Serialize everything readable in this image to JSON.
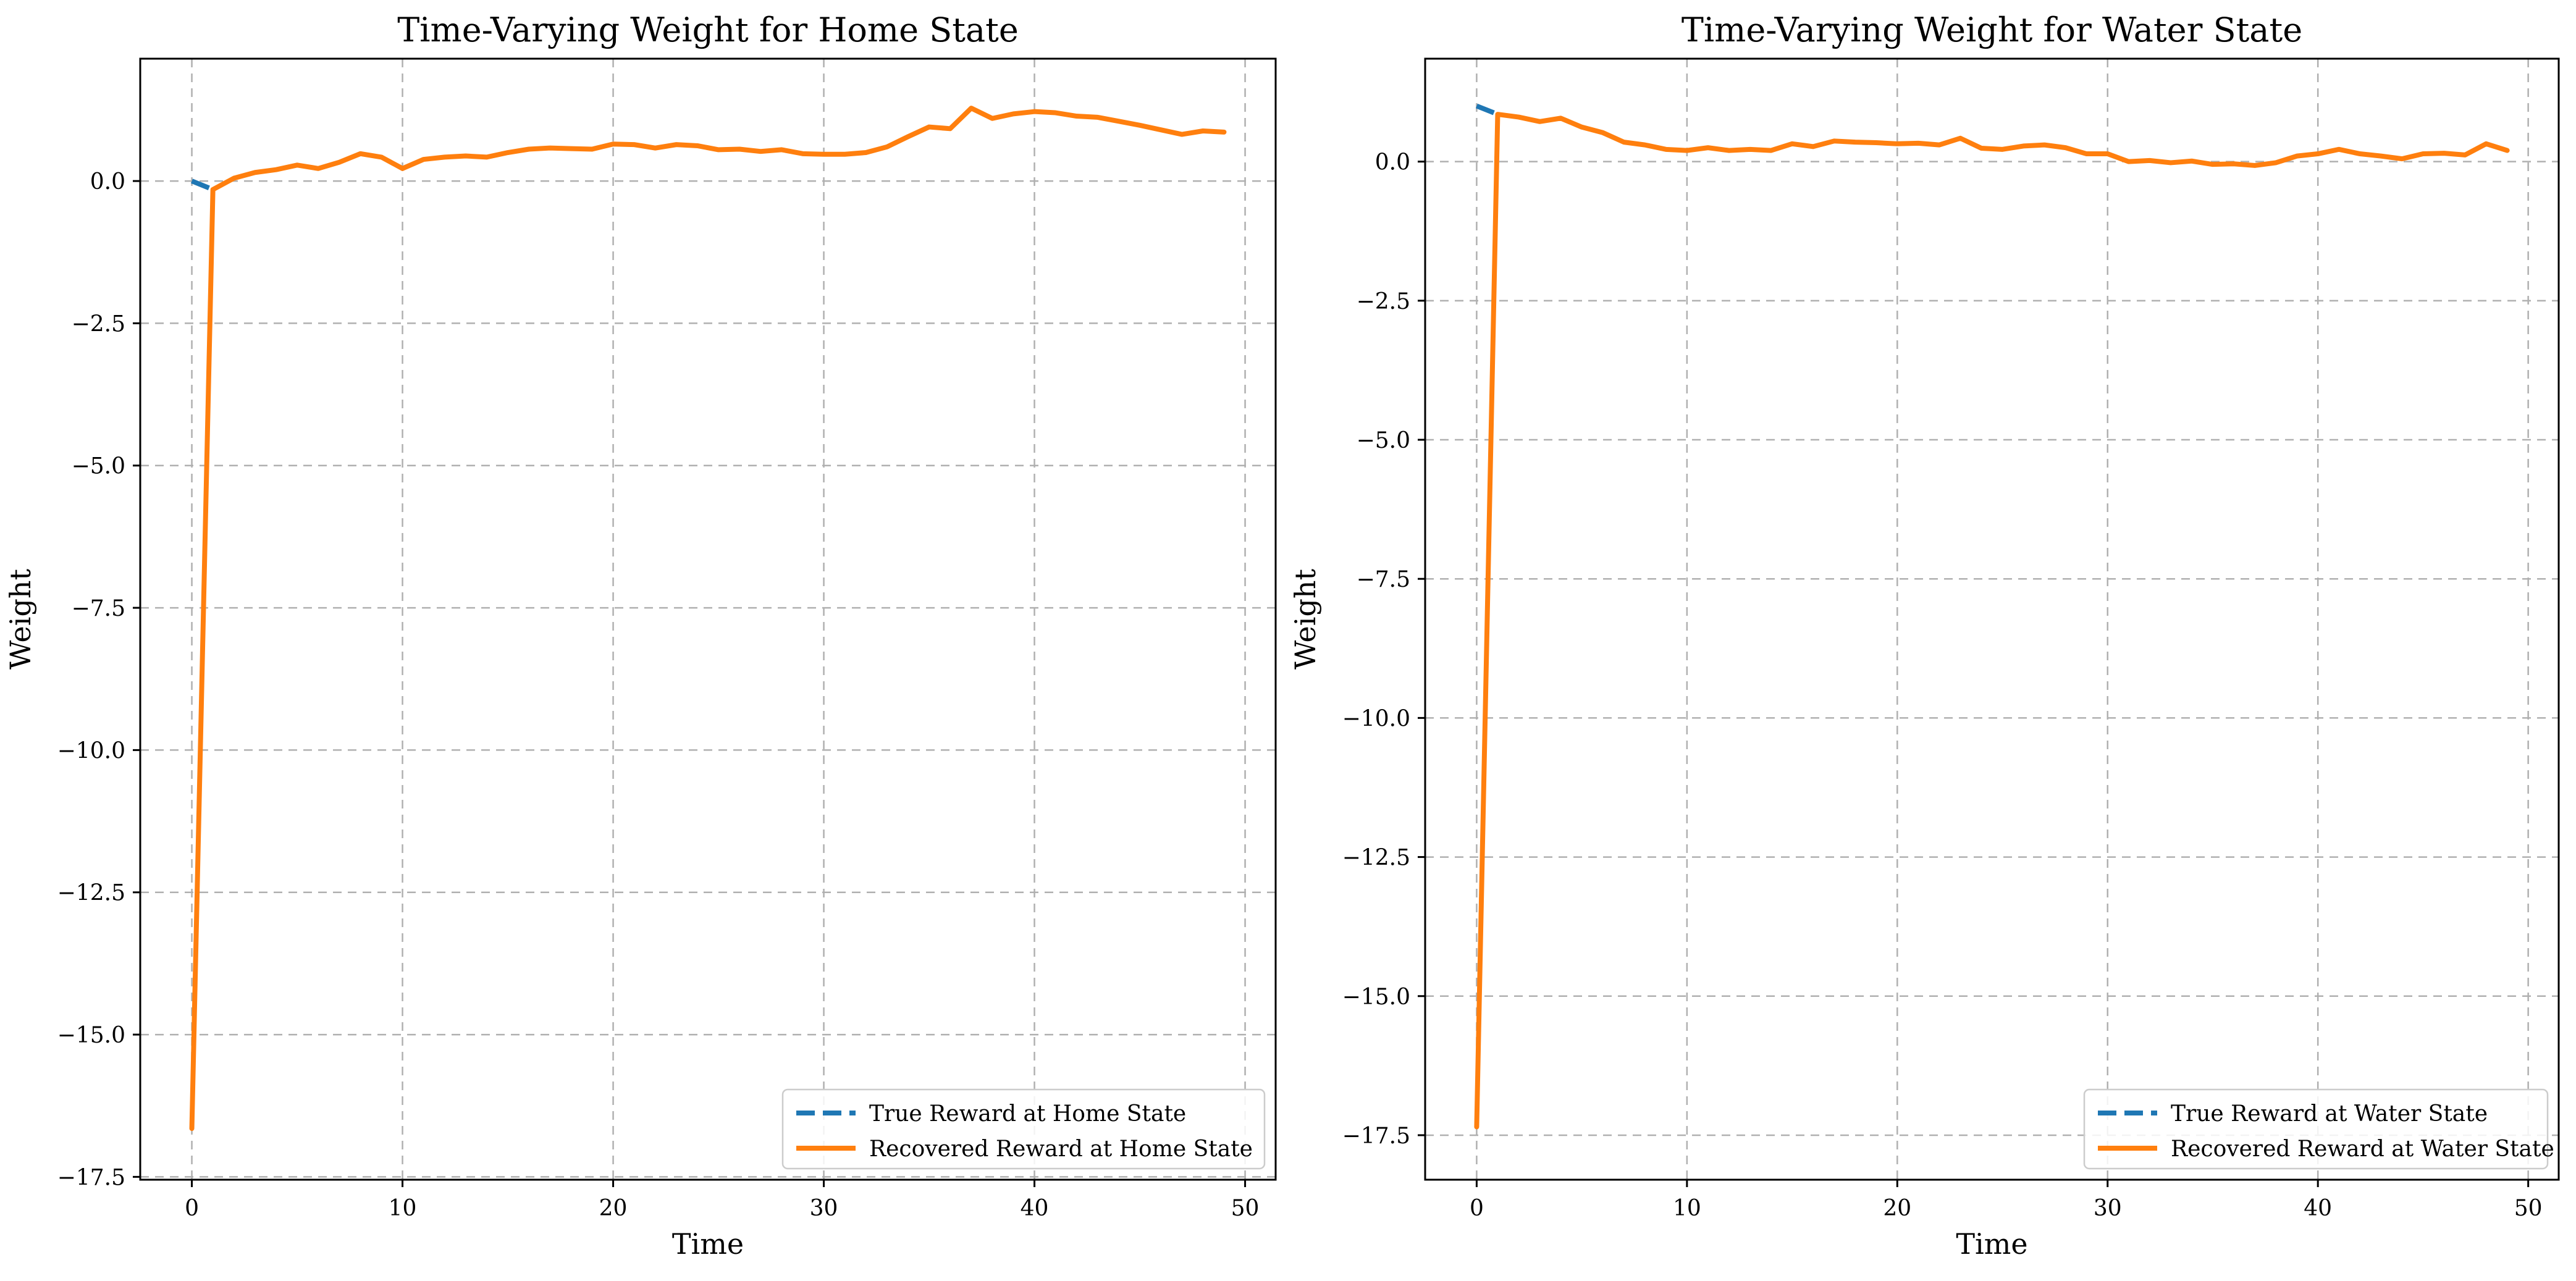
{
  "colors": {
    "true_series": "#1f77b4",
    "recovered_series": "#ff7f0e"
  },
  "chart_data": [
    {
      "type": "line",
      "title": "Time-Varying Weight for Home State",
      "xlabel": "Time",
      "ylabel": "Weight",
      "xlim": [
        -2.45,
        51.45
      ],
      "ylim": [
        -17.55,
        2.15
      ],
      "xticks": [
        0,
        10,
        20,
        30,
        40,
        50
      ],
      "xtick_labels": [
        "0",
        "10",
        "20",
        "30",
        "40",
        "50"
      ],
      "yticks": [
        0.0,
        -2.5,
        -5.0,
        -7.5,
        -10.0,
        -12.5,
        -15.0,
        -17.5
      ],
      "ytick_labels": [
        "0.0",
        "−2.5",
        "−5.0",
        "−7.5",
        "−10.0",
        "−12.5",
        "−15.0",
        "−17.5"
      ],
      "grid": true,
      "legend_position": "lower-right",
      "series": [
        {
          "name": "True Reward at Home State",
          "style": "dashed",
          "color": "#1f77b4",
          "x": [
            0,
            1
          ],
          "y": [
            0.0,
            -0.15
          ]
        },
        {
          "name": "Recovered Reward at Home State",
          "style": "solid",
          "color": "#ff7f0e",
          "x": [
            0,
            1,
            2,
            3,
            4,
            5,
            6,
            7,
            8,
            9,
            10,
            11,
            12,
            13,
            14,
            15,
            16,
            17,
            18,
            19,
            20,
            21,
            22,
            23,
            24,
            25,
            26,
            27,
            28,
            29,
            30,
            31,
            32,
            33,
            34,
            35,
            36,
            37,
            38,
            39,
            40,
            41,
            42,
            43,
            44,
            45,
            46,
            47,
            48,
            49
          ],
          "y": [
            -16.65,
            -0.15,
            0.05,
            0.15,
            0.2,
            0.28,
            0.22,
            0.33,
            0.48,
            0.42,
            0.22,
            0.38,
            0.42,
            0.44,
            0.42,
            0.5,
            0.56,
            0.58,
            0.57,
            0.56,
            0.65,
            0.64,
            0.58,
            0.64,
            0.62,
            0.55,
            0.56,
            0.52,
            0.55,
            0.48,
            0.47,
            0.47,
            0.5,
            0.6,
            0.78,
            0.95,
            0.92,
            1.28,
            1.1,
            1.18,
            1.22,
            1.2,
            1.14,
            1.12,
            1.05,
            0.98,
            0.9,
            0.82,
            0.88,
            0.86
          ]
        }
      ]
    },
    {
      "type": "line",
      "title": "Time-Varying Weight for Water State",
      "xlabel": "Time",
      "ylabel": "Weight",
      "xlim": [
        -2.45,
        51.45
      ],
      "ylim": [
        -18.3,
        1.85
      ],
      "xticks": [
        0,
        10,
        20,
        30,
        40,
        50
      ],
      "xtick_labels": [
        "0",
        "10",
        "20",
        "30",
        "40",
        "50"
      ],
      "yticks": [
        0.0,
        -2.5,
        -5.0,
        -7.5,
        -10.0,
        -12.5,
        -15.0,
        -17.5
      ],
      "ytick_labels": [
        "0.0",
        "−2.5",
        "−5.0",
        "−7.5",
        "−10.0",
        "−12.5",
        "−15.0",
        "−17.5"
      ],
      "grid": true,
      "legend_position": "lower-right",
      "series": [
        {
          "name": "True Reward at Water State",
          "style": "dashed",
          "color": "#1f77b4",
          "x": [
            0,
            1
          ],
          "y": [
            1.0,
            0.85
          ]
        },
        {
          "name": "Recovered Reward at Water State",
          "style": "solid",
          "color": "#ff7f0e",
          "x": [
            0,
            1,
            2,
            3,
            4,
            5,
            6,
            7,
            8,
            9,
            10,
            11,
            12,
            13,
            14,
            15,
            16,
            17,
            18,
            19,
            20,
            21,
            22,
            23,
            24,
            25,
            26,
            27,
            28,
            29,
            30,
            31,
            32,
            33,
            34,
            35,
            36,
            37,
            38,
            39,
            40,
            41,
            42,
            43,
            44,
            45,
            46,
            47,
            48,
            49
          ],
          "y": [
            -17.35,
            0.85,
            0.8,
            0.72,
            0.78,
            0.62,
            0.52,
            0.35,
            0.3,
            0.22,
            0.2,
            0.25,
            0.2,
            0.22,
            0.2,
            0.32,
            0.27,
            0.37,
            0.35,
            0.34,
            0.32,
            0.33,
            0.3,
            0.42,
            0.24,
            0.22,
            0.28,
            0.3,
            0.25,
            0.14,
            0.14,
            0.0,
            0.02,
            -0.02,
            0.01,
            -0.05,
            -0.04,
            -0.07,
            -0.02,
            0.1,
            0.14,
            0.22,
            0.14,
            0.1,
            0.05,
            0.14,
            0.15,
            0.12,
            0.32,
            0.2
          ]
        }
      ]
    }
  ]
}
